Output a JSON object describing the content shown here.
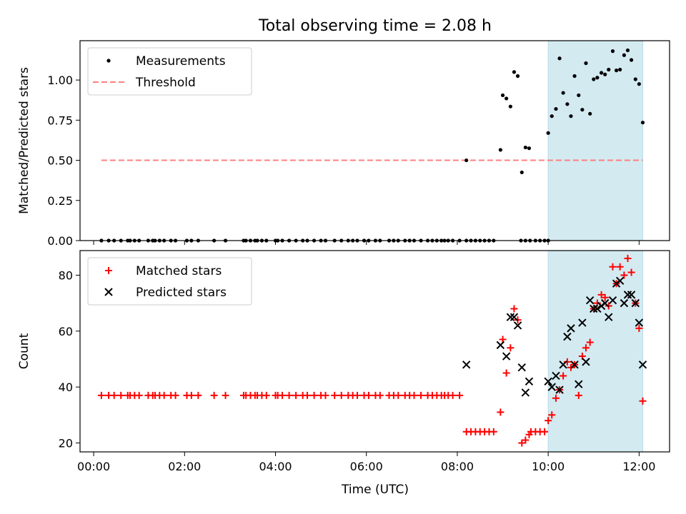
{
  "figure": {
    "title": "Total observing time = 2.08 h",
    "xlabel": "Time (UTC)",
    "xticks": [
      {
        "hour": 0,
        "label": "00:00"
      },
      {
        "hour": 2,
        "label": "02:00"
      },
      {
        "hour": 4,
        "label": "04:00"
      },
      {
        "hour": 6,
        "label": "06:00"
      },
      {
        "hour": 8,
        "label": "08:00"
      },
      {
        "hour": 10,
        "label": "10:00"
      },
      {
        "hour": 12,
        "label": "12:00"
      }
    ]
  },
  "chart_data": [
    {
      "type": "scatter",
      "ylabel": "Matched/Predicted stars",
      "xlim_hours": [
        -0.3,
        12.67
      ],
      "ylim": [
        0,
        1.245
      ],
      "yticks": [
        "0.00",
        "0.25",
        "0.50",
        "0.75",
        "1.00"
      ],
      "shaded_interval_hours": [
        10.0,
        12.08
      ],
      "shaded_color": "#d3eaf1",
      "legend_position": "top-left",
      "threshold": {
        "name": "Threshold",
        "value": 0.5,
        "x_range_hours": [
          0.17,
          12.08
        ],
        "color": "#ff7f7f"
      },
      "series": [
        {
          "name": "Measurements",
          "color": "#000000",
          "marker": "dot",
          "points": [
            [
              0.17,
              0
            ],
            [
              0.33,
              0
            ],
            [
              0.45,
              0
            ],
            [
              0.6,
              0
            ],
            [
              0.75,
              0
            ],
            [
              0.8,
              0
            ],
            [
              0.9,
              0
            ],
            [
              1.0,
              0
            ],
            [
              1.2,
              0
            ],
            [
              1.3,
              0
            ],
            [
              1.35,
              0
            ],
            [
              1.45,
              0
            ],
            [
              1.55,
              0
            ],
            [
              1.7,
              0
            ],
            [
              1.8,
              0
            ],
            [
              2.05,
              0
            ],
            [
              2.15,
              0
            ],
            [
              2.3,
              0
            ],
            [
              2.65,
              0
            ],
            [
              2.9,
              0
            ],
            [
              3.3,
              0
            ],
            [
              3.35,
              0
            ],
            [
              3.45,
              0
            ],
            [
              3.55,
              0
            ],
            [
              3.6,
              0
            ],
            [
              3.7,
              0
            ],
            [
              3.8,
              0
            ],
            [
              4.0,
              0
            ],
            [
              4.05,
              0
            ],
            [
              4.15,
              0
            ],
            [
              4.3,
              0
            ],
            [
              4.45,
              0
            ],
            [
              4.6,
              0
            ],
            [
              4.7,
              0
            ],
            [
              4.85,
              0
            ],
            [
              5.0,
              0
            ],
            [
              5.1,
              0
            ],
            [
              5.3,
              0
            ],
            [
              5.45,
              0
            ],
            [
              5.6,
              0
            ],
            [
              5.7,
              0
            ],
            [
              5.8,
              0
            ],
            [
              5.95,
              0
            ],
            [
              6.05,
              0
            ],
            [
              6.2,
              0
            ],
            [
              6.3,
              0
            ],
            [
              6.5,
              0
            ],
            [
              6.6,
              0
            ],
            [
              6.7,
              0
            ],
            [
              6.85,
              0
            ],
            [
              6.95,
              0
            ],
            [
              7.05,
              0
            ],
            [
              7.2,
              0
            ],
            [
              7.35,
              0
            ],
            [
              7.45,
              0
            ],
            [
              7.55,
              0
            ],
            [
              7.65,
              0
            ],
            [
              7.72,
              0
            ],
            [
              7.8,
              0
            ],
            [
              7.9,
              0
            ],
            [
              8.05,
              0
            ],
            [
              8.2,
              0
            ],
            [
              8.3,
              0
            ],
            [
              8.4,
              0
            ],
            [
              8.5,
              0
            ],
            [
              8.6,
              0
            ],
            [
              8.7,
              0
            ],
            [
              8.8,
              0
            ],
            [
              9.4,
              0
            ],
            [
              9.5,
              0
            ],
            [
              9.6,
              0
            ],
            [
              9.72,
              0
            ],
            [
              9.82,
              0
            ],
            [
              9.92,
              0
            ],
            [
              10.0,
              0
            ],
            [
              8.2,
              0.5
            ],
            [
              8.95,
              0.565
            ],
            [
              9.0,
              0.905
            ],
            [
              9.08,
              0.885
            ],
            [
              9.17,
              0.835
            ],
            [
              9.25,
              1.05
            ],
            [
              9.33,
              1.025
            ],
            [
              9.42,
              0.425
            ],
            [
              9.5,
              0.58
            ],
            [
              9.58,
              0.575
            ],
            [
              10.0,
              0.67
            ],
            [
              10.08,
              0.775
            ],
            [
              10.17,
              0.82
            ],
            [
              10.25,
              1.135
            ],
            [
              10.33,
              0.92
            ],
            [
              10.42,
              0.85
            ],
            [
              10.5,
              0.775
            ],
            [
              10.58,
              1.025
            ],
            [
              10.67,
              0.905
            ],
            [
              10.75,
              0.815
            ],
            [
              10.83,
              1.105
            ],
            [
              10.92,
              0.79
            ],
            [
              11.0,
              1.005
            ],
            [
              11.08,
              1.015
            ],
            [
              11.17,
              1.045
            ],
            [
              11.25,
              1.035
            ],
            [
              11.33,
              1.065
            ],
            [
              11.42,
              1.18
            ],
            [
              11.5,
              1.06
            ],
            [
              11.58,
              1.065
            ],
            [
              11.67,
              1.155
            ],
            [
              11.75,
              1.185
            ],
            [
              11.83,
              1.125
            ],
            [
              11.92,
              1.005
            ],
            [
              12.0,
              0.975
            ],
            [
              12.08,
              0.735
            ]
          ]
        }
      ]
    },
    {
      "type": "scatter",
      "ylabel": "Count",
      "xlim_hours": [
        -0.3,
        12.67
      ],
      "ylim": [
        16.8,
        88.8
      ],
      "yticks": [
        "20",
        "40",
        "60",
        "80"
      ],
      "shaded_interval_hours": [
        10.0,
        12.08
      ],
      "shaded_color": "#d3eaf1",
      "legend_position": "top-left",
      "series": [
        {
          "name": "Matched stars",
          "color": "#ff0000",
          "marker": "plus",
          "points": [
            [
              0.17,
              37
            ],
            [
              0.33,
              37
            ],
            [
              0.45,
              37
            ],
            [
              0.6,
              37
            ],
            [
              0.75,
              37
            ],
            [
              0.8,
              37
            ],
            [
              0.9,
              37
            ],
            [
              1.0,
              37
            ],
            [
              1.2,
              37
            ],
            [
              1.3,
              37
            ],
            [
              1.35,
              37
            ],
            [
              1.45,
              37
            ],
            [
              1.55,
              37
            ],
            [
              1.7,
              37
            ],
            [
              1.8,
              37
            ],
            [
              2.05,
              37
            ],
            [
              2.15,
              37
            ],
            [
              2.3,
              37
            ],
            [
              2.65,
              37
            ],
            [
              2.9,
              37
            ],
            [
              3.3,
              37
            ],
            [
              3.35,
              37
            ],
            [
              3.45,
              37
            ],
            [
              3.55,
              37
            ],
            [
              3.6,
              37
            ],
            [
              3.7,
              37
            ],
            [
              3.8,
              37
            ],
            [
              4.0,
              37
            ],
            [
              4.05,
              37
            ],
            [
              4.15,
              37
            ],
            [
              4.3,
              37
            ],
            [
              4.45,
              37
            ],
            [
              4.6,
              37
            ],
            [
              4.7,
              37
            ],
            [
              4.85,
              37
            ],
            [
              5.0,
              37
            ],
            [
              5.1,
              37
            ],
            [
              5.3,
              37
            ],
            [
              5.45,
              37
            ],
            [
              5.6,
              37
            ],
            [
              5.7,
              37
            ],
            [
              5.8,
              37
            ],
            [
              5.95,
              37
            ],
            [
              6.05,
              37
            ],
            [
              6.2,
              37
            ],
            [
              6.3,
              37
            ],
            [
              6.5,
              37
            ],
            [
              6.6,
              37
            ],
            [
              6.7,
              37
            ],
            [
              6.85,
              37
            ],
            [
              6.95,
              37
            ],
            [
              7.05,
              37
            ],
            [
              7.2,
              37
            ],
            [
              7.35,
              37
            ],
            [
              7.45,
              37
            ],
            [
              7.55,
              37
            ],
            [
              7.65,
              37
            ],
            [
              7.72,
              37
            ],
            [
              7.8,
              37
            ],
            [
              7.9,
              37
            ],
            [
              8.05,
              37
            ],
            [
              8.2,
              24
            ],
            [
              8.3,
              24
            ],
            [
              8.4,
              24
            ],
            [
              8.5,
              24
            ],
            [
              8.6,
              24
            ],
            [
              8.7,
              24
            ],
            [
              8.8,
              24
            ],
            [
              8.95,
              31
            ],
            [
              9.0,
              57
            ],
            [
              9.08,
              45
            ],
            [
              9.17,
              54
            ],
            [
              9.25,
              68
            ],
            [
              9.33,
              64
            ],
            [
              9.42,
              20
            ],
            [
              9.5,
              21
            ],
            [
              9.58,
              23
            ],
            [
              9.62,
              24
            ],
            [
              9.72,
              24
            ],
            [
              9.82,
              24
            ],
            [
              9.92,
              24
            ],
            [
              10.0,
              28
            ],
            [
              10.08,
              30
            ],
            [
              10.17,
              36
            ],
            [
              10.25,
              39
            ],
            [
              10.33,
              44
            ],
            [
              10.42,
              49
            ],
            [
              10.5,
              47
            ],
            [
              10.58,
              48
            ],
            [
              10.67,
              37
            ],
            [
              10.75,
              51
            ],
            [
              10.83,
              54
            ],
            [
              10.92,
              56
            ],
            [
              11.0,
              68
            ],
            [
              11.08,
              70
            ],
            [
              11.17,
              73
            ],
            [
              11.25,
              72
            ],
            [
              11.33,
              69
            ],
            [
              11.42,
              83
            ],
            [
              11.5,
              77
            ],
            [
              11.58,
              83
            ],
            [
              11.67,
              80
            ],
            [
              11.75,
              86
            ],
            [
              11.83,
              81
            ],
            [
              11.92,
              70
            ],
            [
              12.0,
              61
            ],
            [
              12.08,
              35
            ]
          ]
        },
        {
          "name": "Predicted stars",
          "color": "#000000",
          "marker": "x",
          "points": [
            [
              8.2,
              48
            ],
            [
              8.95,
              55
            ],
            [
              9.08,
              51
            ],
            [
              9.17,
              65
            ],
            [
              9.25,
              65
            ],
            [
              9.33,
              62
            ],
            [
              9.42,
              47
            ],
            [
              9.5,
              38
            ],
            [
              9.58,
              42
            ],
            [
              10.0,
              42
            ],
            [
              10.08,
              40
            ],
            [
              10.17,
              44
            ],
            [
              10.25,
              39
            ],
            [
              10.33,
              48
            ],
            [
              10.42,
              58
            ],
            [
              10.5,
              61
            ],
            [
              10.58,
              48
            ],
            [
              10.67,
              41
            ],
            [
              10.75,
              63
            ],
            [
              10.83,
              49
            ],
            [
              10.92,
              71
            ],
            [
              11.0,
              68
            ],
            [
              11.08,
              68
            ],
            [
              11.17,
              69
            ],
            [
              11.25,
              70
            ],
            [
              11.33,
              65
            ],
            [
              11.42,
              71
            ],
            [
              11.5,
              77
            ],
            [
              11.58,
              78
            ],
            [
              11.67,
              70
            ],
            [
              11.75,
              73
            ],
            [
              11.83,
              73
            ],
            [
              11.92,
              70
            ],
            [
              12.0,
              63
            ],
            [
              12.08,
              48
            ]
          ]
        }
      ]
    }
  ]
}
